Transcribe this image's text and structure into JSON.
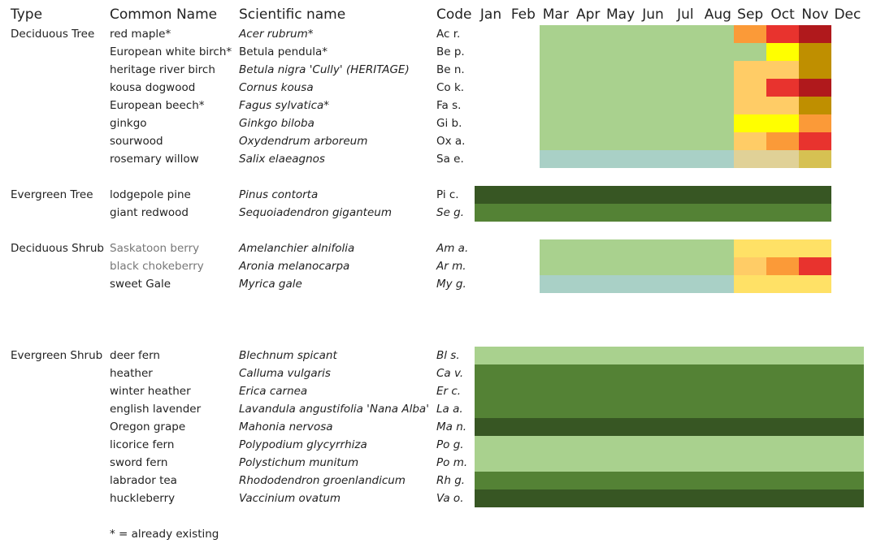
{
  "header": {
    "type": "Type",
    "common": "Common Name",
    "scientific": "Scientific name",
    "code": "Code",
    "months": [
      "Jan",
      "Feb",
      "Mar",
      "Apr",
      "May",
      "Jun",
      "Jul",
      "Aug",
      "Sep",
      "Oct",
      "Nov",
      "Dec"
    ]
  },
  "groups": [
    {
      "type": "Deciduous Tree",
      "rows": [
        {
          "common": "red maple*",
          "scientific": "Acer rubrum*",
          "code": "Ac r.",
          "colors": [
            null,
            null,
            "#a9d18e",
            "#a9d18e",
            "#a9d18e",
            "#a9d18e",
            "#a9d18e",
            "#a9d18e",
            "#fb9a38",
            "#e8332e",
            "#b0191c",
            null
          ]
        },
        {
          "common": "European white birch*",
          "scientific": "Betula pendula*",
          "scientific_roman": true,
          "code": "Be p.",
          "colors": [
            null,
            null,
            "#a9d18e",
            "#a9d18e",
            "#a9d18e",
            "#a9d18e",
            "#a9d18e",
            "#a9d18e",
            "#a9d18e",
            "#ffff00",
            "#bf8f00",
            null
          ]
        },
        {
          "common": "heritage river birch",
          "scientific": "Betula nigra 'Cully' (HERITAGE)",
          "code": "Be n.",
          "colors": [
            null,
            null,
            "#a9d18e",
            "#a9d18e",
            "#a9d18e",
            "#a9d18e",
            "#a9d18e",
            "#a9d18e",
            "#ffcc66",
            "#ffcc66",
            "#bf8f00",
            null
          ]
        },
        {
          "common": "kousa dogwood",
          "scientific": "Cornus kousa",
          "code": "Co k.",
          "colors": [
            null,
            null,
            "#a9d18e",
            "#a9d18e",
            "#a9d18e",
            "#a9d18e",
            "#a9d18e",
            "#a9d18e",
            "#ffcc66",
            "#e8332e",
            "#b0191c",
            null
          ]
        },
        {
          "common": "European beech*",
          "scientific": "Fagus sylvatica*",
          "code": "Fa s.",
          "colors": [
            null,
            null,
            "#a9d18e",
            "#a9d18e",
            "#a9d18e",
            "#a9d18e",
            "#a9d18e",
            "#a9d18e",
            "#ffcc66",
            "#ffcc66",
            "#bf8f00",
            null
          ]
        },
        {
          "common": "ginkgo",
          "scientific": "Ginkgo biloba",
          "code": "Gi b.",
          "colors": [
            null,
            null,
            "#a9d18e",
            "#a9d18e",
            "#a9d18e",
            "#a9d18e",
            "#a9d18e",
            "#a9d18e",
            "#ffff00",
            "#ffff00",
            "#fb9a38",
            null
          ]
        },
        {
          "common": "sourwood",
          "scientific": "Oxydendrum arboreum",
          "code": "Ox a.",
          "colors": [
            null,
            null,
            "#a9d18e",
            "#a9d18e",
            "#a9d18e",
            "#a9d18e",
            "#a9d18e",
            "#a9d18e",
            "#ffcc66",
            "#fb9a38",
            "#e8332e",
            null
          ]
        },
        {
          "common": "rosemary willow",
          "scientific": "Salix elaeagnos",
          "code": "Sa e.",
          "colors": [
            null,
            null,
            "#a9d0c6",
            "#a9d0c6",
            "#a9d0c6",
            "#a9d0c6",
            "#a9d0c6",
            "#a9d0c6",
            "#e0d197",
            "#e0d197",
            "#d6c152",
            null
          ]
        }
      ]
    },
    {
      "type": "Evergreen Tree",
      "rows": [
        {
          "common": "lodgepole pine",
          "scientific": "Pinus contorta",
          "code": "Pi c.",
          "colors": [
            "#375623",
            "#375623",
            "#375623",
            "#375623",
            "#375623",
            "#375623",
            "#375623",
            "#375623",
            "#375623",
            "#375623",
            "#375623",
            null
          ]
        },
        {
          "common": "giant redwood",
          "scientific": "Sequoiadendron giganteum",
          "code": "Se g.",
          "code_italic": true,
          "colors": [
            "#548235",
            "#548235",
            "#548235",
            "#548235",
            "#548235",
            "#548235",
            "#548235",
            "#548235",
            "#548235",
            "#548235",
            "#548235",
            null
          ]
        }
      ]
    },
    {
      "type": "Deciduous Shrub",
      "rows": [
        {
          "common": "Saskatoon berry",
          "muted": true,
          "scientific": "Amelanchier alnifolia",
          "code": "Am a.",
          "code_italic": true,
          "colors": [
            null,
            null,
            "#a9d18e",
            "#a9d18e",
            "#a9d18e",
            "#a9d18e",
            "#a9d18e",
            "#a9d18e",
            "#ffe166",
            "#ffe166",
            "#ffe166",
            null
          ]
        },
        {
          "common": "black chokeberry",
          "muted": true,
          "scientific": "Aronia melanocarpa",
          "code": "Ar m.",
          "code_italic": true,
          "colors": [
            null,
            null,
            "#a9d18e",
            "#a9d18e",
            "#a9d18e",
            "#a9d18e",
            "#a9d18e",
            "#a9d18e",
            "#ffcc66",
            "#fb9a38",
            "#e8332e",
            null
          ]
        },
        {
          "common": "sweet Gale",
          "scientific": "Myrica gale",
          "code": "My g.",
          "code_italic": true,
          "colors": [
            null,
            null,
            "#a9d0c6",
            "#a9d0c6",
            "#a9d0c6",
            "#a9d0c6",
            "#a9d0c6",
            "#a9d0c6",
            "#ffe166",
            "#ffe166",
            "#ffe166",
            null
          ]
        }
      ]
    },
    {
      "type": "Evergreen Shrub",
      "rows": [
        {
          "common": "deer fern",
          "scientific": "Blechnum spicant",
          "code": "Bl s.",
          "code_italic": true,
          "colors": [
            "#a9d18e",
            "#a9d18e",
            "#a9d18e",
            "#a9d18e",
            "#a9d18e",
            "#a9d18e",
            "#a9d18e",
            "#a9d18e",
            "#a9d18e",
            "#a9d18e",
            "#a9d18e",
            "#a9d18e"
          ]
        },
        {
          "common": "heather",
          "scientific": "Calluma vulgaris",
          "code": "Ca v.",
          "code_italic": true,
          "colors": [
            "#548235",
            "#548235",
            "#548235",
            "#548235",
            "#548235",
            "#548235",
            "#548235",
            "#548235",
            "#548235",
            "#548235",
            "#548235",
            "#548235"
          ]
        },
        {
          "common": "winter heather",
          "scientific": "Erica carnea",
          "code": "Er c.",
          "code_italic": true,
          "colors": [
            "#548235",
            "#548235",
            "#548235",
            "#548235",
            "#548235",
            "#548235",
            "#548235",
            "#548235",
            "#548235",
            "#548235",
            "#548235",
            "#548235"
          ]
        },
        {
          "common": "english lavender",
          "scientific": "Lavandula angustifolia 'Nana Alba'",
          "code": "La a.",
          "code_italic": true,
          "colors": [
            "#548235",
            "#548235",
            "#548235",
            "#548235",
            "#548235",
            "#548235",
            "#548235",
            "#548235",
            "#548235",
            "#548235",
            "#548235",
            "#548235"
          ]
        },
        {
          "common": "Oregon grape",
          "scientific": "Mahonia nervosa",
          "code": "Ma n.",
          "code_italic": true,
          "colors": [
            "#375623",
            "#375623",
            "#375623",
            "#375623",
            "#375623",
            "#375623",
            "#375623",
            "#375623",
            "#375623",
            "#375623",
            "#375623",
            "#375623"
          ]
        },
        {
          "common": "licorice fern",
          "scientific": "Polypodium glycyrrhiza",
          "code": "Po g.",
          "code_italic": true,
          "colors": [
            "#a9d18e",
            "#a9d18e",
            "#a9d18e",
            "#a9d18e",
            "#a9d18e",
            "#a9d18e",
            "#a9d18e",
            "#a9d18e",
            "#a9d18e",
            "#a9d18e",
            "#a9d18e",
            "#a9d18e"
          ]
        },
        {
          "common": "sword fern",
          "scientific": "Polystichum munitum",
          "code": "Po m.",
          "code_italic": true,
          "colors": [
            "#a9d18e",
            "#a9d18e",
            "#a9d18e",
            "#a9d18e",
            "#a9d18e",
            "#a9d18e",
            "#a9d18e",
            "#a9d18e",
            "#a9d18e",
            "#a9d18e",
            "#a9d18e",
            "#a9d18e"
          ]
        },
        {
          "common": "labrador tea",
          "scientific": "Rhododendron groenlandicum",
          "code": "Rh g.",
          "code_italic": true,
          "colors": [
            "#548235",
            "#548235",
            "#548235",
            "#548235",
            "#548235",
            "#548235",
            "#548235",
            "#548235",
            "#548235",
            "#548235",
            "#548235",
            "#548235"
          ]
        },
        {
          "common": "huckleberry",
          "scientific": "Vaccinium ovatum",
          "code": "Va o.",
          "code_italic": true,
          "colors": [
            "#375623",
            "#375623",
            "#375623",
            "#375623",
            "#375623",
            "#375623",
            "#375623",
            "#375623",
            "#375623",
            "#375623",
            "#375623",
            "#375623"
          ]
        }
      ]
    }
  ],
  "footnote": "* = already existing"
}
